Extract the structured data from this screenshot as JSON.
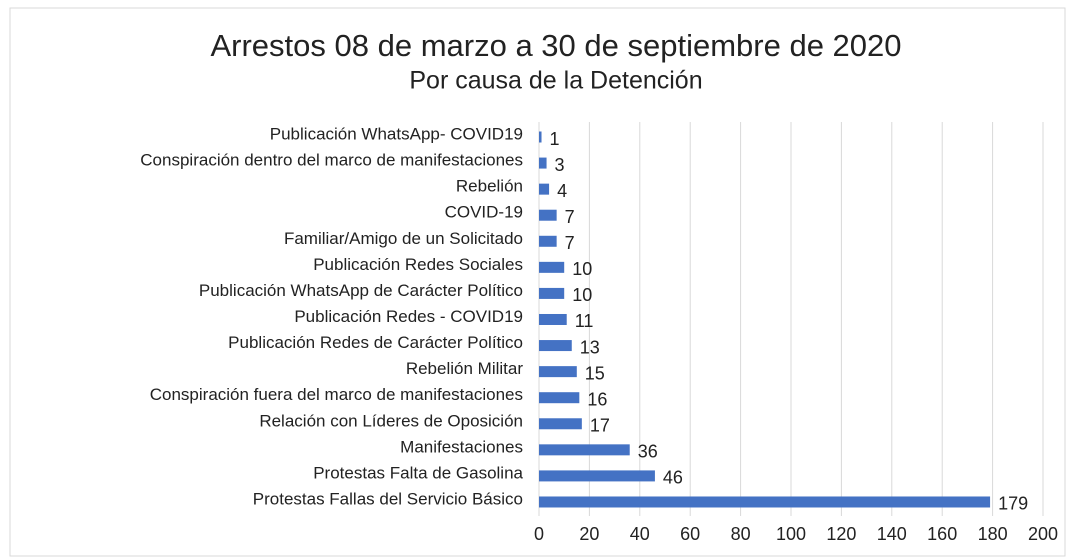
{
  "chart_data": {
    "type": "bar",
    "orientation": "horizontal",
    "title": "Arrestos 08 de marzo a 30 de septiembre de 2020",
    "subtitle": "Por causa de la Detención",
    "categories": [
      "Publicación WhatsApp- COVID19",
      "Conspiración dentro del marco de manifestaciones",
      "Rebelión",
      "COVID-19",
      "Familiar/Amigo de un Solicitado",
      "Publicación Redes Sociales",
      "Publicación WhatsApp de Carácter Político",
      "Publicación Redes - COVID19",
      "Publicación Redes de Carácter Político",
      "Rebelión Militar",
      "Conspiración fuera del marco de manifestaciones",
      "Relación con Líderes de Oposición",
      "Manifestaciones",
      "Protestas Falta de Gasolina",
      "Protestas Fallas del Servicio Básico"
    ],
    "values": [
      1,
      3,
      4,
      7,
      7,
      10,
      10,
      11,
      13,
      15,
      16,
      17,
      36,
      46,
      179
    ],
    "color": "#4472c4",
    "xlim": [
      0,
      200
    ],
    "xticks": [
      0,
      20,
      40,
      60,
      80,
      100,
      120,
      140,
      160,
      180,
      200
    ],
    "grid": true
  }
}
